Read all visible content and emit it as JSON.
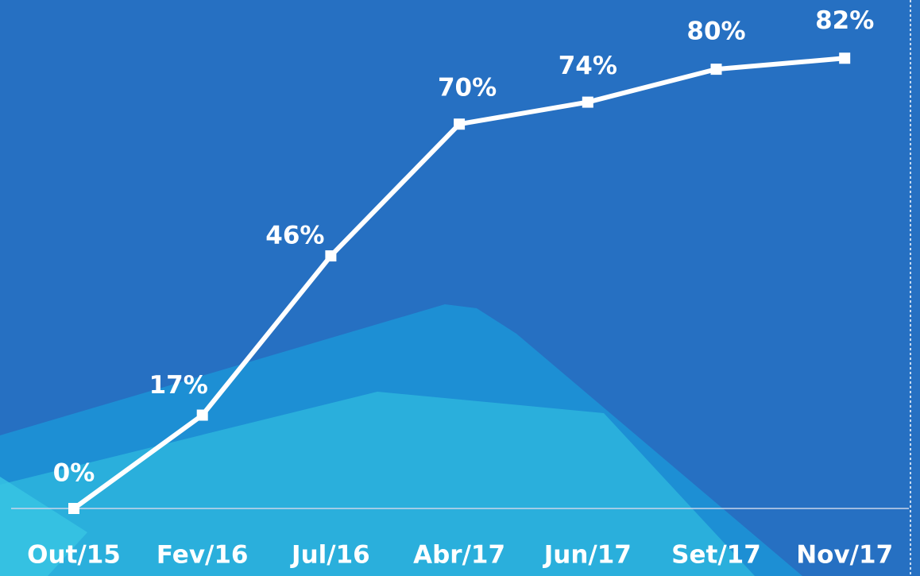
{
  "chart_data": {
    "type": "line",
    "categories": [
      "Out/15",
      "Fev/16",
      "Jul/16",
      "Abr/17",
      "Jun/17",
      "Set/17",
      "Nov/17"
    ],
    "values": [
      0,
      17,
      46,
      70,
      74,
      80,
      82
    ],
    "value_labels": [
      "0%",
      "17%",
      "46%",
      "70%",
      "74%",
      "80%",
      "82%"
    ],
    "color": "#ffffff",
    "ylim": [
      0,
      90
    ]
  }
}
